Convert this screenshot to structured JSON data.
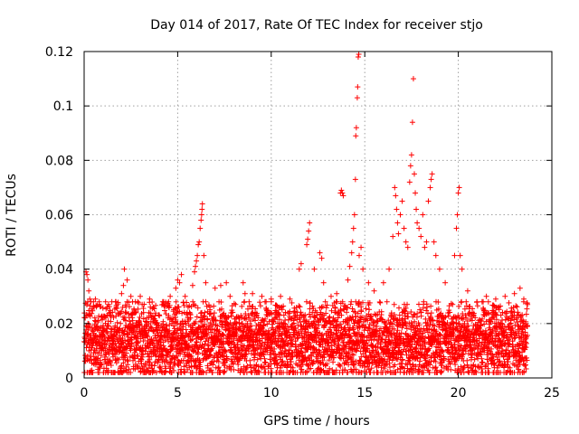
{
  "chart_data": {
    "type": "scatter",
    "title": "Day 014 of 2017, Rate Of TEC Index for receiver stjo",
    "xlabel": "GPS time / hours",
    "ylabel": "ROTI / TECUs",
    "xlim": [
      0,
      25
    ],
    "ylim": [
      0,
      0.12
    ],
    "x_ticks": [
      0,
      5,
      10,
      15,
      20,
      25
    ],
    "x_tick_labels": [
      "0",
      "5",
      "10",
      "15",
      "20",
      "25"
    ],
    "y_ticks": [
      0,
      0.02,
      0.04,
      0.06,
      0.08,
      0.1,
      0.12
    ],
    "y_tick_labels": [
      "0",
      "0.02",
      "0.04",
      "0.06",
      "0.08",
      "0.1",
      "0.12"
    ],
    "grid": true,
    "marker": "+",
    "color": "#ff0000",
    "series": [
      {
        "name": "ROTI",
        "points": [
          [
            0.1,
            0.039
          ],
          [
            0.15,
            0.038
          ],
          [
            0.2,
            0.036
          ],
          [
            0.25,
            0.032
          ],
          [
            0.3,
            0.029
          ],
          [
            0.5,
            0.028
          ],
          [
            0.6,
            0.029
          ],
          [
            0.8,
            0.027
          ],
          [
            1.3,
            0.027
          ],
          [
            1.7,
            0.028
          ],
          [
            2.0,
            0.031
          ],
          [
            2.1,
            0.034
          ],
          [
            2.15,
            0.04
          ],
          [
            2.3,
            0.036
          ],
          [
            2.5,
            0.03
          ],
          [
            3.0,
            0.03
          ],
          [
            3.5,
            0.029
          ],
          [
            4.2,
            0.028
          ],
          [
            4.6,
            0.03
          ],
          [
            4.9,
            0.033
          ],
          [
            5.0,
            0.036
          ],
          [
            5.1,
            0.035
          ],
          [
            5.2,
            0.038
          ],
          [
            5.4,
            0.03
          ],
          [
            5.8,
            0.034
          ],
          [
            5.9,
            0.039
          ],
          [
            5.95,
            0.041
          ],
          [
            6.0,
            0.043
          ],
          [
            6.05,
            0.045
          ],
          [
            6.1,
            0.049
          ],
          [
            6.15,
            0.05
          ],
          [
            6.2,
            0.055
          ],
          [
            6.25,
            0.058
          ],
          [
            6.28,
            0.06
          ],
          [
            6.3,
            0.062
          ],
          [
            6.32,
            0.064
          ],
          [
            6.4,
            0.045
          ],
          [
            6.5,
            0.035
          ],
          [
            7.0,
            0.033
          ],
          [
            7.3,
            0.034
          ],
          [
            7.6,
            0.035
          ],
          [
            7.8,
            0.03
          ],
          [
            8.5,
            0.035
          ],
          [
            8.6,
            0.031
          ],
          [
            9.0,
            0.031
          ],
          [
            9.5,
            0.03
          ],
          [
            10.0,
            0.029
          ],
          [
            10.5,
            0.03
          ],
          [
            11.0,
            0.029
          ],
          [
            11.5,
            0.04
          ],
          [
            11.6,
            0.042
          ],
          [
            11.9,
            0.049
          ],
          [
            11.95,
            0.051
          ],
          [
            12.0,
            0.054
          ],
          [
            12.05,
            0.057
          ],
          [
            12.3,
            0.04
          ],
          [
            12.6,
            0.046
          ],
          [
            12.7,
            0.044
          ],
          [
            12.8,
            0.035
          ],
          [
            13.2,
            0.03
          ],
          [
            13.5,
            0.031
          ],
          [
            13.7,
            0.068
          ],
          [
            13.75,
            0.069
          ],
          [
            13.8,
            0.068
          ],
          [
            13.85,
            0.067
          ],
          [
            14.1,
            0.036
          ],
          [
            14.2,
            0.041
          ],
          [
            14.3,
            0.046
          ],
          [
            14.35,
            0.05
          ],
          [
            14.4,
            0.055
          ],
          [
            14.45,
            0.06
          ],
          [
            14.5,
            0.073
          ],
          [
            14.52,
            0.089
          ],
          [
            14.55,
            0.092
          ],
          [
            14.6,
            0.103
          ],
          [
            14.62,
            0.107
          ],
          [
            14.65,
            0.118
          ],
          [
            14.68,
            0.119
          ],
          [
            14.7,
            0.045
          ],
          [
            14.8,
            0.048
          ],
          [
            14.9,
            0.04
          ],
          [
            15.2,
            0.035
          ],
          [
            15.5,
            0.032
          ],
          [
            16.0,
            0.035
          ],
          [
            16.3,
            0.04
          ],
          [
            16.5,
            0.052
          ],
          [
            16.6,
            0.07
          ],
          [
            16.65,
            0.067
          ],
          [
            16.7,
            0.062
          ],
          [
            16.75,
            0.057
          ],
          [
            16.8,
            0.053
          ],
          [
            16.9,
            0.06
          ],
          [
            17.0,
            0.065
          ],
          [
            17.1,
            0.055
          ],
          [
            17.2,
            0.05
          ],
          [
            17.3,
            0.048
          ],
          [
            17.4,
            0.072
          ],
          [
            17.45,
            0.078
          ],
          [
            17.5,
            0.082
          ],
          [
            17.55,
            0.094
          ],
          [
            17.6,
            0.11
          ],
          [
            17.65,
            0.075
          ],
          [
            17.7,
            0.068
          ],
          [
            17.75,
            0.062
          ],
          [
            17.8,
            0.057
          ],
          [
            17.9,
            0.055
          ],
          [
            18.0,
            0.052
          ],
          [
            18.1,
            0.06
          ],
          [
            18.2,
            0.048
          ],
          [
            18.3,
            0.05
          ],
          [
            18.4,
            0.065
          ],
          [
            18.5,
            0.07
          ],
          [
            18.55,
            0.073
          ],
          [
            18.6,
            0.075
          ],
          [
            18.7,
            0.05
          ],
          [
            18.8,
            0.045
          ],
          [
            19.0,
            0.04
          ],
          [
            19.3,
            0.035
          ],
          [
            19.8,
            0.045
          ],
          [
            19.9,
            0.055
          ],
          [
            19.95,
            0.06
          ],
          [
            20.0,
            0.068
          ],
          [
            20.05,
            0.07
          ],
          [
            20.1,
            0.045
          ],
          [
            20.2,
            0.04
          ],
          [
            20.5,
            0.032
          ],
          [
            21.0,
            0.028
          ],
          [
            21.5,
            0.03
          ],
          [
            22.0,
            0.029
          ],
          [
            22.5,
            0.03
          ],
          [
            23.0,
            0.031
          ],
          [
            23.3,
            0.033
          ],
          [
            23.5,
            0.029
          ],
          [
            23.7,
            0.027
          ]
        ],
        "dense_band": {
          "x_range": [
            0,
            23.7
          ],
          "y_range": [
            0.002,
            0.028
          ],
          "typical_center": 0.013,
          "description_values": [
            0.002,
            0.005,
            0.008,
            0.01,
            0.013,
            0.016,
            0.02,
            0.024,
            0.028
          ]
        }
      }
    ]
  }
}
